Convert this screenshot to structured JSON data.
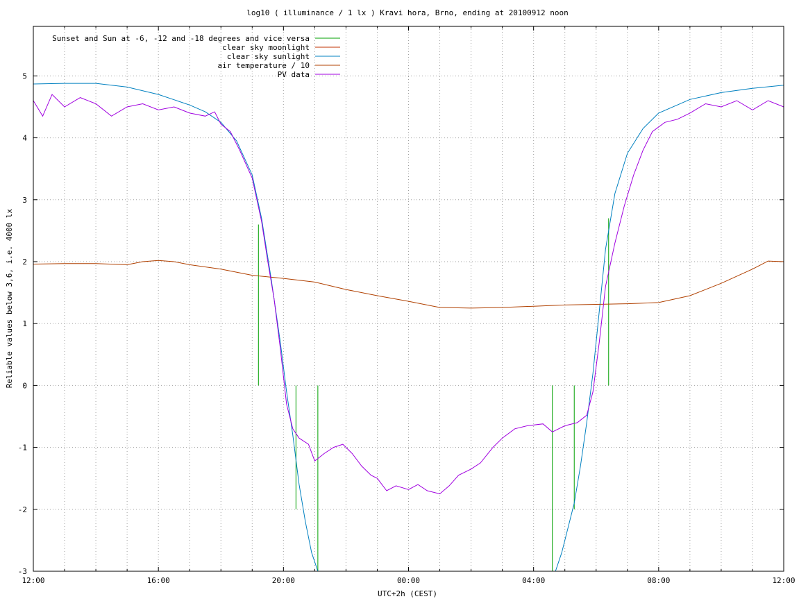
{
  "chart_data": {
    "type": "line",
    "title": "log10 ( illuminance / 1 lx ) Kravi hora, Brno, ending at 20100912 noon",
    "xlabel": "UTC+2h (CEST)",
    "ylabel": "Reliable values below 3,6, i.e. 4000 lx",
    "x_range_hours": [
      0,
      24
    ],
    "ylim": [
      -3,
      5.8
    ],
    "x_tick_labels": [
      {
        "h": 0,
        "label": "12:00"
      },
      {
        "h": 4,
        "label": "16:00"
      },
      {
        "h": 8,
        "label": "20:00"
      },
      {
        "h": 12,
        "label": "00:00"
      },
      {
        "h": 16,
        "label": "04:00"
      },
      {
        "h": 20,
        "label": "08:00"
      },
      {
        "h": 24,
        "label": "12:00"
      }
    ],
    "y_ticks": [
      -3,
      -2,
      -1,
      0,
      1,
      2,
      3,
      4,
      5
    ],
    "grid": true,
    "legend_position": "top-left",
    "legend": [
      {
        "label": "Sunset and Sun at -6, -12 and -18 degrees and vice versa",
        "color": "#00a000"
      },
      {
        "label": "clear sky moonlight",
        "color": "#c03000"
      },
      {
        "label": "clear sky sunlight",
        "color": "#0080c0"
      },
      {
        "label": "air temperature / 10",
        "color": "#b04000"
      },
      {
        "label": "PV data",
        "color": "#a000e0"
      }
    ],
    "series": [
      {
        "name": "Sunset and Sun at -6, -12 and -18 degrees and vice versa",
        "kind": "vertical_markers",
        "markers": [
          {
            "x": 7.2,
            "y_top": 2.6
          },
          {
            "x": 8.4,
            "y_top": -2.0
          },
          {
            "x": 9.1,
            "y_top": -3.0
          },
          {
            "x": 16.6,
            "y_top": -3.0
          },
          {
            "x": 17.3,
            "y_top": -2.0
          },
          {
            "x": 18.4,
            "y_top": 2.7
          }
        ]
      },
      {
        "name": "clear sky sunlight",
        "points": [
          [
            0,
            4.87
          ],
          [
            1,
            4.88
          ],
          [
            2,
            4.88
          ],
          [
            3,
            4.82
          ],
          [
            4,
            4.7
          ],
          [
            5,
            4.53
          ],
          [
            5.5,
            4.42
          ],
          [
            6,
            4.25
          ],
          [
            6.5,
            3.95
          ],
          [
            7,
            3.4
          ],
          [
            7.3,
            2.7
          ],
          [
            7.6,
            1.75
          ],
          [
            7.9,
            0.7
          ],
          [
            8.1,
            -0.1
          ],
          [
            8.3,
            -0.8
          ],
          [
            8.5,
            -1.6
          ],
          [
            8.7,
            -2.2
          ],
          [
            8.9,
            -2.7
          ],
          [
            9.1,
            -3.0
          ],
          [
            16.7,
            -3.0
          ],
          [
            16.9,
            -2.7
          ],
          [
            17.1,
            -2.3
          ],
          [
            17.3,
            -1.9
          ],
          [
            17.5,
            -1.3
          ],
          [
            17.7,
            -0.6
          ],
          [
            17.9,
            0.2
          ],
          [
            18.1,
            1.2
          ],
          [
            18.3,
            2.2
          ],
          [
            18.6,
            3.1
          ],
          [
            19,
            3.75
          ],
          [
            19.5,
            4.15
          ],
          [
            20,
            4.4
          ],
          [
            21,
            4.62
          ],
          [
            22,
            4.73
          ],
          [
            23,
            4.8
          ],
          [
            24,
            4.85
          ]
        ]
      },
      {
        "name": "air temperature / 10",
        "points": [
          [
            0,
            1.96
          ],
          [
            1,
            1.97
          ],
          [
            2,
            1.97
          ],
          [
            3,
            1.95
          ],
          [
            3.5,
            2.0
          ],
          [
            4,
            2.02
          ],
          [
            4.5,
            2.0
          ],
          [
            5,
            1.95
          ],
          [
            6,
            1.88
          ],
          [
            7,
            1.78
          ],
          [
            8,
            1.73
          ],
          [
            9,
            1.67
          ],
          [
            10,
            1.55
          ],
          [
            11,
            1.45
          ],
          [
            12,
            1.36
          ],
          [
            13,
            1.26
          ],
          [
            14,
            1.25
          ],
          [
            15,
            1.26
          ],
          [
            16,
            1.28
          ],
          [
            17,
            1.3
          ],
          [
            18,
            1.31
          ],
          [
            19,
            1.32
          ],
          [
            20,
            1.34
          ],
          [
            21,
            1.45
          ],
          [
            22,
            1.65
          ],
          [
            23,
            1.88
          ],
          [
            23.5,
            2.01
          ],
          [
            24,
            2.0
          ]
        ]
      },
      {
        "name": "PV data",
        "points": [
          [
            0,
            4.6
          ],
          [
            0.3,
            4.35
          ],
          [
            0.6,
            4.7
          ],
          [
            1,
            4.5
          ],
          [
            1.5,
            4.65
          ],
          [
            2,
            4.55
          ],
          [
            2.5,
            4.35
          ],
          [
            3,
            4.5
          ],
          [
            3.5,
            4.55
          ],
          [
            4,
            4.45
          ],
          [
            4.5,
            4.5
          ],
          [
            5,
            4.4
          ],
          [
            5.5,
            4.35
          ],
          [
            5.8,
            4.42
          ],
          [
            6,
            4.22
          ],
          [
            6.3,
            4.1
          ],
          [
            6.6,
            3.8
          ],
          [
            7,
            3.35
          ],
          [
            7.3,
            2.65
          ],
          [
            7.5,
            2.0
          ],
          [
            7.7,
            1.4
          ],
          [
            7.9,
            0.6
          ],
          [
            8.1,
            -0.3
          ],
          [
            8.3,
            -0.7
          ],
          [
            8.5,
            -0.85
          ],
          [
            8.8,
            -0.95
          ],
          [
            9,
            -1.22
          ],
          [
            9.3,
            -1.1
          ],
          [
            9.6,
            -1.0
          ],
          [
            9.9,
            -0.95
          ],
          [
            10.2,
            -1.1
          ],
          [
            10.5,
            -1.3
          ],
          [
            10.8,
            -1.45
          ],
          [
            11,
            -1.5
          ],
          [
            11.3,
            -1.7
          ],
          [
            11.6,
            -1.62
          ],
          [
            12,
            -1.68
          ],
          [
            12.3,
            -1.6
          ],
          [
            12.6,
            -1.7
          ],
          [
            13,
            -1.75
          ],
          [
            13.3,
            -1.62
          ],
          [
            13.6,
            -1.45
          ],
          [
            14,
            -1.35
          ],
          [
            14.3,
            -1.25
          ],
          [
            14.7,
            -1.0
          ],
          [
            15,
            -0.85
          ],
          [
            15.4,
            -0.7
          ],
          [
            15.8,
            -0.65
          ],
          [
            16.3,
            -0.62
          ],
          [
            16.6,
            -0.75
          ],
          [
            17,
            -0.65
          ],
          [
            17.4,
            -0.6
          ],
          [
            17.7,
            -0.48
          ],
          [
            17.9,
            -0.1
          ],
          [
            18.1,
            0.7
          ],
          [
            18.3,
            1.6
          ],
          [
            18.6,
            2.3
          ],
          [
            18.9,
            2.9
          ],
          [
            19.2,
            3.4
          ],
          [
            19.5,
            3.8
          ],
          [
            19.8,
            4.1
          ],
          [
            20.2,
            4.25
          ],
          [
            20.6,
            4.3
          ],
          [
            21,
            4.4
          ],
          [
            21.5,
            4.55
          ],
          [
            22,
            4.5
          ],
          [
            22.5,
            4.6
          ],
          [
            23,
            4.45
          ],
          [
            23.5,
            4.6
          ],
          [
            24,
            4.5
          ]
        ]
      }
    ]
  }
}
